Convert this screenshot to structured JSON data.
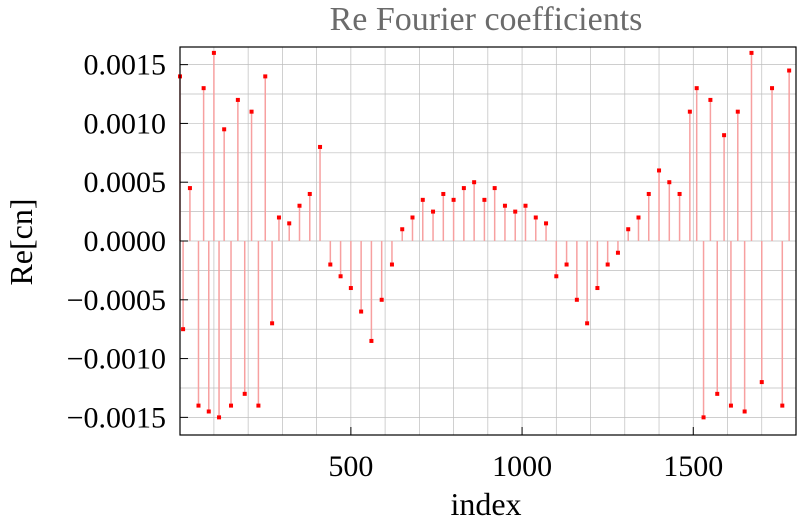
{
  "chart_data": {
    "type": "scatter",
    "title": "Re Fourier coefficients",
    "xlabel": "index",
    "ylabel": "Re[cn]",
    "xlim": [
      1,
      1800
    ],
    "ylim": [
      -0.00165,
      0.00165
    ],
    "grid": true,
    "x_major_ticks": [
      500,
      1000,
      1500
    ],
    "y_major_ticks": [
      -0.0015,
      -0.001,
      -0.0005,
      0.0,
      0.0005,
      0.001,
      0.0015
    ],
    "x_tick_labels": [
      "500",
      "1000",
      "1500"
    ],
    "y_tick_labels": [
      "−0.0015",
      "−0.0010",
      "−0.0005",
      "0.0000",
      "0.0005",
      "0.0010",
      "0.0015"
    ],
    "x_grid_step": 100,
    "y_grid_step": 0.00025,
    "marker_color": "#ff0000",
    "stem_color": "#f7a0a0",
    "grid_color": "#bdbdbd",
    "series": [
      {
        "values_note_x": [
          1,
          10,
          30,
          55,
          70,
          85,
          100,
          115,
          130,
          150,
          170,
          190,
          210,
          230,
          250,
          270,
          290,
          320,
          350,
          380,
          410,
          440,
          470,
          500,
          530,
          560,
          590,
          620,
          650,
          680,
          710,
          740,
          770,
          800,
          830,
          860,
          890,
          920,
          950,
          980,
          1010,
          1040,
          1070,
          1100,
          1130,
          1160,
          1190,
          1220,
          1250,
          1280,
          1310,
          1340,
          1370,
          1400,
          1430,
          1460,
          1490,
          1510,
          1530,
          1550,
          1570,
          1590,
          1610,
          1630,
          1650,
          1670,
          1700,
          1730,
          1760,
          1780
        ],
        "values_note_y": [
          0.0014,
          -0.00075,
          0.00045,
          -0.0014,
          0.0013,
          -0.00145,
          0.0016,
          -0.0015,
          0.00095,
          -0.0014,
          0.0012,
          -0.0013,
          0.0011,
          -0.0014,
          0.0014,
          -0.0007,
          0.0002,
          0.00015,
          0.0003,
          0.0004,
          0.0008,
          -0.0002,
          -0.0003,
          -0.0004,
          -0.0006,
          -0.00085,
          -0.0005,
          -0.0002,
          0.0001,
          0.0002,
          0.00035,
          0.00025,
          0.0004,
          0.00035,
          0.00045,
          0.0005,
          0.00035,
          0.00045,
          0.0003,
          0.00025,
          0.0003,
          0.0002,
          0.00015,
          -0.0003,
          -0.0002,
          -0.0005,
          -0.0007,
          -0.0004,
          -0.0002,
          -0.0001,
          0.0001,
          0.0002,
          0.0004,
          0.0006,
          0.0005,
          0.0004,
          0.0011,
          0.0013,
          -0.0015,
          0.0012,
          -0.0013,
          0.0009,
          -0.0014,
          0.0011,
          -0.00145,
          0.0016,
          -0.0012,
          0.0013,
          -0.0014,
          0.00145
        ]
      }
    ]
  }
}
